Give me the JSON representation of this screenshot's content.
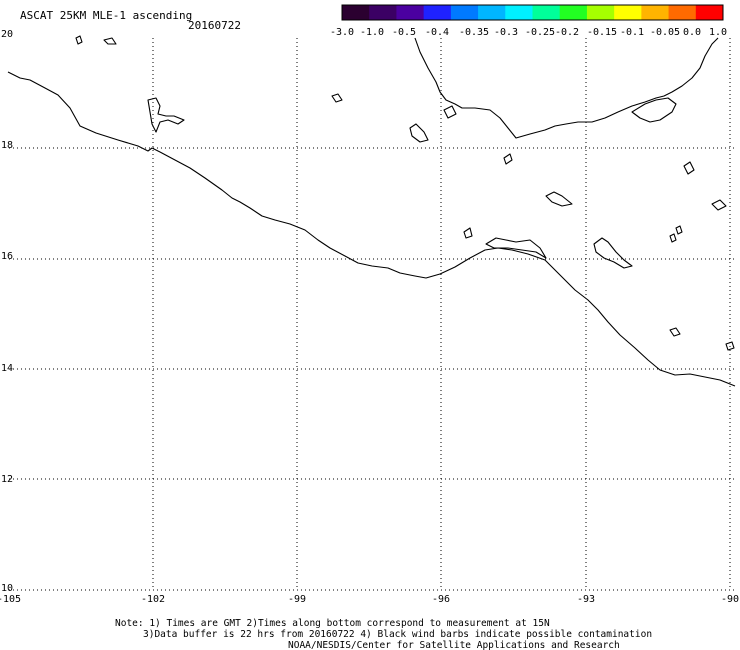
{
  "header": {
    "title": "ASCAT 25KM MLE-1 ascending",
    "date": "20160722"
  },
  "colorbar": {
    "colors": [
      "#2b0030",
      "#3b0064",
      "#4b00a0",
      "#1f22ff",
      "#007aff",
      "#00b6ff",
      "#00f0ff",
      "#00ff9a",
      "#22ff22",
      "#a6ff00",
      "#ffff00",
      "#ffb400",
      "#ff6a00",
      "#ff0000"
    ],
    "tick_labels": [
      "-3.0",
      "-1.0",
      "-0.5",
      "-0.4",
      "-0.35",
      "-0.3",
      "-0.25",
      "-0.2",
      "-0.15",
      "-0.1",
      "-0.05",
      "0.0",
      "1.0"
    ]
  },
  "map": {
    "lon_labels": [
      "-105",
      "-102",
      "-99",
      "-96",
      "-93",
      "-90"
    ],
    "lat_labels": [
      "20",
      "18",
      "16",
      "14",
      "12",
      "10"
    ]
  },
  "notes": {
    "line1": "Note: 1) Times are GMT 2)Times along bottom correspond to measurement at 15N",
    "line2": "3)Data buffer is 22 hrs from 20160722 4) Black wind barbs indicate possible contamination",
    "line3": "NOAA/NESDIS/Center for Satellite Applications and Research"
  }
}
